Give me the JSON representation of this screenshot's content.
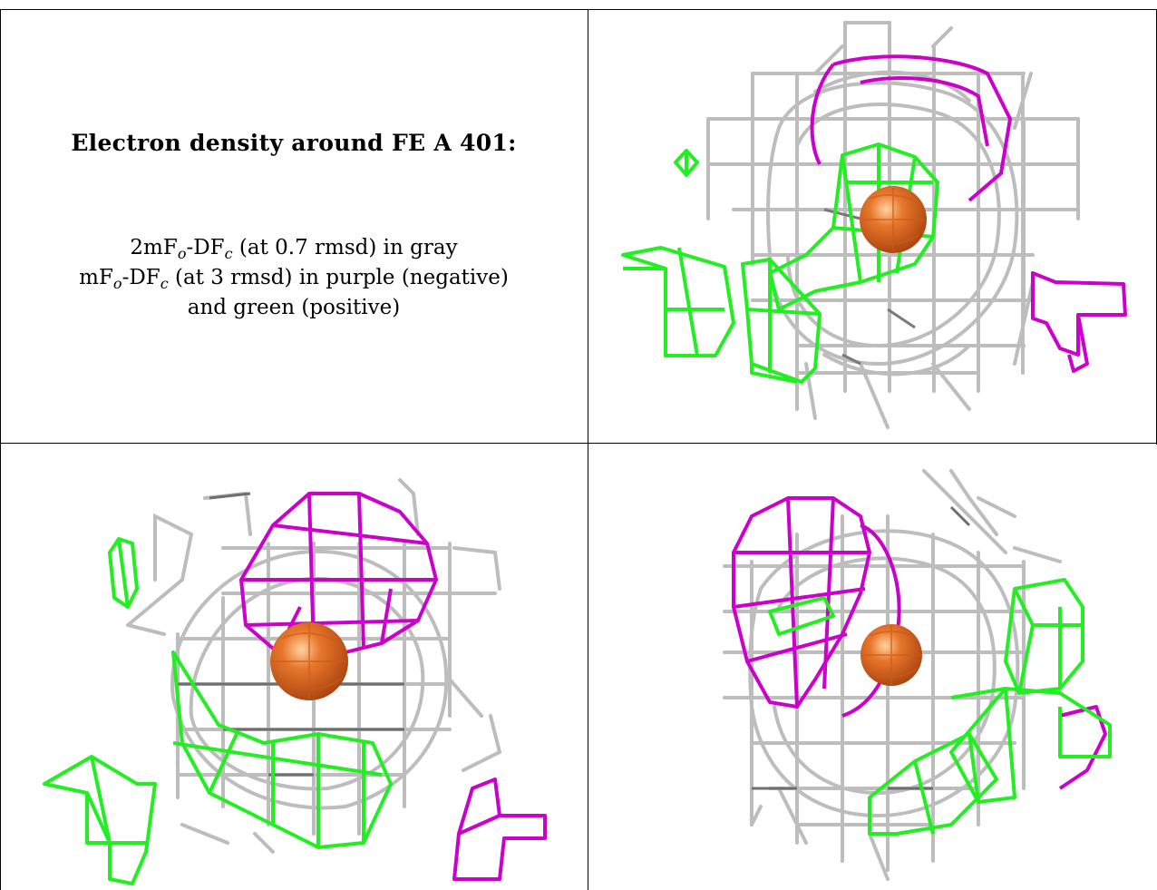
{
  "caption": {
    "title": "Electron density around FE A 401:",
    "line1": {
      "pre": "2mF",
      "sub1": "o",
      "mid": "-DF",
      "sub2": "c",
      "post": " (at 0.7 rmsd) in gray"
    },
    "line2": {
      "pre": "mF",
      "sub1": "o",
      "mid": "-DF",
      "sub2": "c",
      "post": " (at 3 rmsd) in purple (negative)"
    },
    "line3": "and green (positive)"
  },
  "colors": {
    "gray_mesh": "#b8b8b8",
    "gray_dark": "#777777",
    "purple_mesh": "#cc00cc",
    "green_mesh": "#22ee22",
    "iron_atom": "#e06a20",
    "border": "#000000"
  },
  "panels": [
    {
      "id": "view-1",
      "description_icon": "electron-density-mesh"
    },
    {
      "id": "view-2",
      "description_icon": "electron-density-mesh"
    },
    {
      "id": "view-3",
      "description_icon": "electron-density-mesh"
    }
  ]
}
